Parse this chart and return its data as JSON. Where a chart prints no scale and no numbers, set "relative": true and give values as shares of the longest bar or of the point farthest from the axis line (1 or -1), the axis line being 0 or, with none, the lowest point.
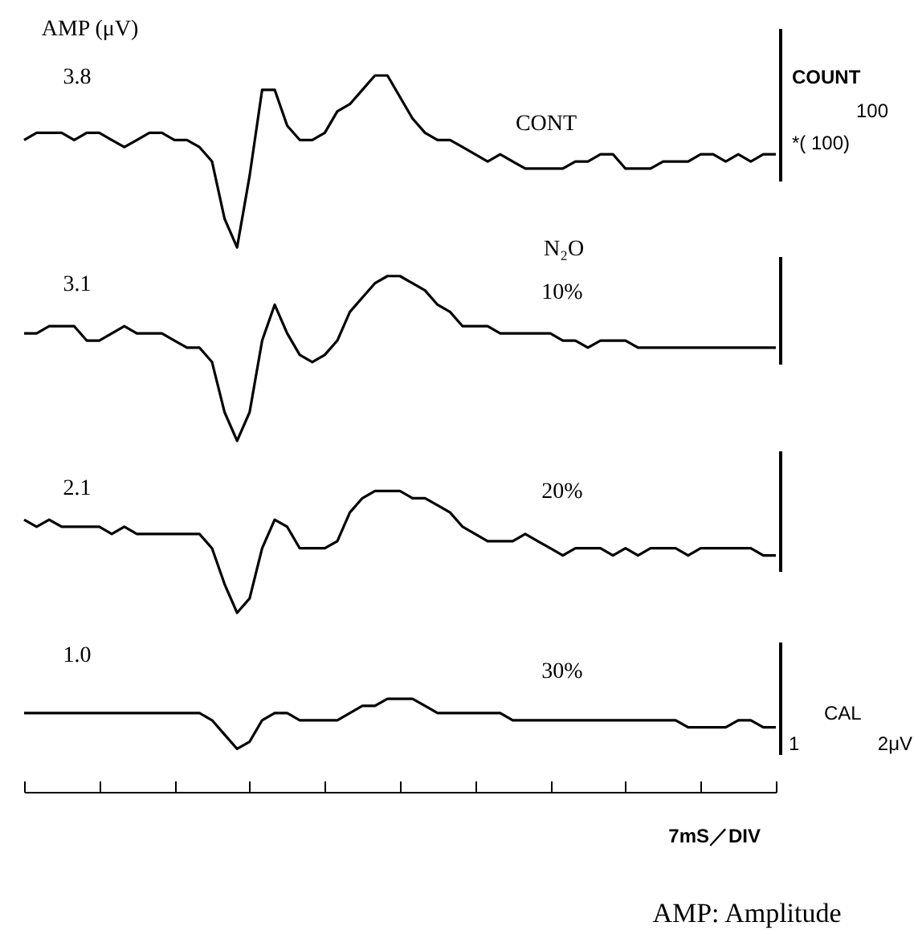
{
  "chart_data": {
    "type": "line",
    "relative": true,
    "ylabel": "AMP (μV)",
    "xlabel": "7mS／DIV",
    "categories": [
      null,
      null,
      null,
      null,
      null,
      null,
      null,
      null,
      null,
      null,
      null,
      null,
      null,
      null,
      null,
      null,
      null,
      null,
      null,
      null,
      null,
      null,
      null,
      null,
      null,
      null,
      null,
      null,
      null,
      null,
      null,
      null,
      null,
      null,
      null,
      null,
      null,
      null,
      null,
      null,
      null,
      null,
      null,
      null,
      null,
      null,
      null,
      null,
      null,
      null,
      null,
      null,
      null,
      null,
      null,
      null,
      null,
      null,
      null,
      null,
      null
    ],
    "series": [
      {
        "name": "CONT",
        "color": "#000000",
        "values": [
          0.91,
          0.92,
          0.92,
          0.92,
          0.91,
          0.92,
          0.92,
          0.91,
          0.9,
          0.91,
          0.92,
          0.92,
          0.91,
          0.91,
          0.9,
          0.88,
          0.8,
          0.76,
          0.86,
          0.98,
          0.98,
          0.93,
          0.91,
          0.91,
          0.92,
          0.95,
          0.96,
          0.98,
          1.0,
          1.0,
          0.97,
          0.94,
          0.92,
          0.91,
          0.91,
          0.9,
          0.89,
          0.88,
          0.89,
          0.88,
          0.87,
          0.87,
          0.87,
          0.87,
          0.88,
          0.88,
          0.89,
          0.89,
          0.87,
          0.87,
          0.87,
          0.88,
          0.88,
          0.88,
          0.89,
          0.89,
          0.88,
          0.89,
          0.88,
          0.89,
          0.89
        ]
      },
      {
        "name": "10%",
        "color": "#000000",
        "values": [
          0.64,
          0.64,
          0.65,
          0.65,
          0.65,
          0.63,
          0.63,
          0.64,
          0.65,
          0.64,
          0.64,
          0.64,
          0.63,
          0.62,
          0.62,
          0.6,
          0.53,
          0.49,
          0.53,
          0.63,
          0.68,
          0.64,
          0.61,
          0.6,
          0.61,
          0.63,
          0.67,
          0.69,
          0.71,
          0.72,
          0.72,
          0.71,
          0.7,
          0.68,
          0.67,
          0.65,
          0.65,
          0.65,
          0.64,
          0.64,
          0.64,
          0.64,
          0.64,
          0.63,
          0.63,
          0.62,
          0.63,
          0.63,
          0.63,
          0.62,
          0.62,
          0.62,
          0.62,
          0.62,
          0.62,
          0.62,
          0.62,
          0.62,
          0.62,
          0.62,
          0.62
        ]
      },
      {
        "name": "20%",
        "color": "#000000",
        "values": [
          0.38,
          0.37,
          0.38,
          0.37,
          0.37,
          0.37,
          0.37,
          0.36,
          0.37,
          0.36,
          0.36,
          0.36,
          0.36,
          0.36,
          0.36,
          0.34,
          0.29,
          0.25,
          0.27,
          0.34,
          0.38,
          0.37,
          0.34,
          0.34,
          0.34,
          0.35,
          0.39,
          0.41,
          0.42,
          0.42,
          0.42,
          0.41,
          0.41,
          0.4,
          0.39,
          0.37,
          0.36,
          0.35,
          0.35,
          0.35,
          0.36,
          0.35,
          0.34,
          0.33,
          0.34,
          0.34,
          0.34,
          0.33,
          0.34,
          0.33,
          0.34,
          0.34,
          0.34,
          0.33,
          0.34,
          0.34,
          0.34,
          0.34,
          0.34,
          0.33,
          0.33
        ]
      },
      {
        "name": "30%",
        "color": "#000000",
        "values": [
          0.11,
          0.11,
          0.11,
          0.11,
          0.11,
          0.11,
          0.11,
          0.11,
          0.11,
          0.11,
          0.11,
          0.11,
          0.11,
          0.11,
          0.11,
          0.1,
          0.08,
          0.06,
          0.07,
          0.1,
          0.11,
          0.11,
          0.1,
          0.1,
          0.1,
          0.1,
          0.11,
          0.12,
          0.12,
          0.13,
          0.13,
          0.13,
          0.12,
          0.11,
          0.11,
          0.11,
          0.11,
          0.11,
          0.11,
          0.1,
          0.1,
          0.1,
          0.1,
          0.1,
          0.1,
          0.1,
          0.1,
          0.1,
          0.1,
          0.1,
          0.1,
          0.1,
          0.1,
          0.09,
          0.09,
          0.09,
          0.09,
          0.1,
          0.1,
          0.09,
          0.09
        ]
      }
    ],
    "annotations": [
      "3.8",
      "3.1",
      "2.1",
      "1.0",
      "N₂O",
      "COUNT",
      "100",
      "*( 100)",
      "CAL",
      "1",
      "2μV",
      "AMP: Amplitude"
    ],
    "legend": false,
    "grid": false,
    "marker": "none",
    "line_style": "solid"
  }
}
